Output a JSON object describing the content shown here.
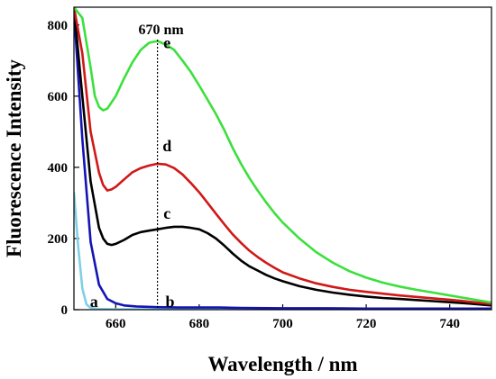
{
  "chart_data": {
    "type": "line",
    "xlabel": "Wavelength / nm",
    "ylabel": "Fluorescence Intensity",
    "xlim": [
      650,
      750
    ],
    "ylim": [
      0,
      850
    ],
    "xticks": [
      660,
      680,
      700,
      720,
      740
    ],
    "yticks": [
      0,
      200,
      400,
      600,
      800
    ],
    "grid": false,
    "annotation": {
      "text": "670 nm",
      "x": 670
    },
    "series": [
      {
        "name": "a",
        "color": "#7fd0e6",
        "x": [
          650,
          651,
          652,
          653,
          654,
          656,
          660,
          680,
          700,
          720,
          740,
          750
        ],
        "y": [
          330,
          180,
          60,
          15,
          5,
          2,
          1,
          1,
          1,
          1,
          1,
          1
        ]
      },
      {
        "name": "b",
        "color": "#1414b4",
        "x": [
          650,
          652,
          654,
          656,
          658,
          660,
          662,
          665,
          670,
          675,
          680,
          685,
          690,
          700,
          710,
          720,
          730,
          740,
          750
        ],
        "y": [
          840,
          480,
          190,
          70,
          30,
          18,
          12,
          9,
          7,
          6,
          6,
          6,
          5,
          4,
          4,
          3,
          3,
          3,
          3
        ]
      },
      {
        "name": "c",
        "color": "#000000",
        "x": [
          650,
          652,
          654,
          656,
          657,
          658,
          659,
          660,
          662,
          664,
          666,
          668,
          670,
          672,
          674,
          676,
          678,
          680,
          682,
          684,
          686,
          688,
          690,
          692,
          694,
          696,
          698,
          700,
          704,
          708,
          712,
          716,
          720,
          724,
          728,
          732,
          736,
          740,
          745,
          750
        ],
        "y": [
          850,
          600,
          360,
          230,
          200,
          185,
          182,
          185,
          196,
          210,
          218,
          222,
          226,
          230,
          233,
          233,
          230,
          226,
          215,
          200,
          180,
          158,
          138,
          122,
          110,
          98,
          88,
          80,
          66,
          56,
          48,
          42,
          37,
          33,
          30,
          27,
          24,
          21,
          17,
          12
        ]
      },
      {
        "name": "d",
        "color": "#d01818",
        "x": [
          650,
          652,
          654,
          656,
          657,
          658,
          659,
          660,
          662,
          664,
          666,
          668,
          670,
          672,
          674,
          676,
          678,
          680,
          682,
          684,
          686,
          688,
          690,
          692,
          694,
          696,
          698,
          700,
          704,
          708,
          712,
          716,
          720,
          724,
          728,
          732,
          736,
          740,
          745,
          750
        ],
        "y": [
          850,
          720,
          500,
          385,
          350,
          335,
          338,
          345,
          366,
          386,
          398,
          405,
          410,
          408,
          398,
          380,
          356,
          330,
          300,
          270,
          240,
          212,
          188,
          166,
          148,
          132,
          118,
          105,
          88,
          74,
          64,
          56,
          50,
          45,
          40,
          36,
          32,
          28,
          22,
          16
        ]
      },
      {
        "name": "e",
        "color": "#3ce03c",
        "x": [
          650,
          652,
          654,
          655,
          656,
          657,
          658,
          660,
          662,
          664,
          666,
          668,
          670,
          672,
          674,
          676,
          678,
          680,
          682,
          684,
          686,
          688,
          690,
          692,
          694,
          696,
          698,
          700,
          704,
          708,
          712,
          716,
          720,
          724,
          728,
          732,
          736,
          740,
          745,
          750
        ],
        "y": [
          850,
          820,
          680,
          600,
          570,
          560,
          565,
          600,
          650,
          695,
          730,
          750,
          755,
          745,
          730,
          700,
          668,
          630,
          590,
          550,
          505,
          455,
          410,
          370,
          335,
          302,
          272,
          245,
          200,
          162,
          132,
          108,
          90,
          76,
          65,
          56,
          48,
          40,
          30,
          20
        ]
      }
    ],
    "curve_labels": [
      {
        "text": "a",
        "x": 654.8,
        "y": 8
      },
      {
        "text": "b",
        "x": 673,
        "y": 8
      },
      {
        "text": "c",
        "x": 672.3,
        "y": 255
      },
      {
        "text": "d",
        "x": 672.3,
        "y": 445
      },
      {
        "text": "e",
        "x": 672.3,
        "y": 735
      }
    ]
  }
}
